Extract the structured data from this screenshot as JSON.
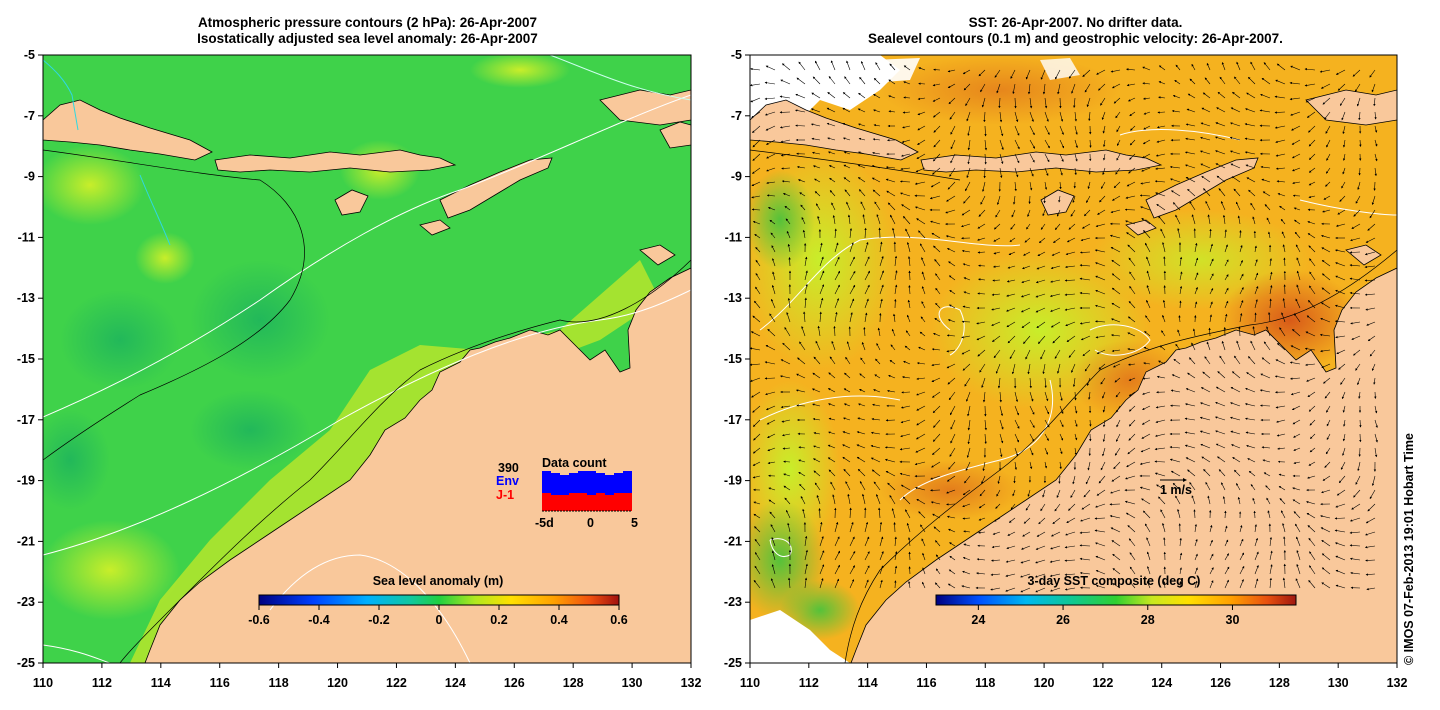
{
  "left_panel": {
    "title_line1": "Atmospheric pressure contours (2 hPa): 26-Apr-2007",
    "title_line2": "Isostatically adjusted sea level anomaly: 26-Apr-2007",
    "colorbar": {
      "label": "Sea level anomaly (m)",
      "ticks": [
        "-0.6",
        "-0.4",
        "-0.2",
        "0",
        "0.2",
        "0.4",
        "0.6"
      ],
      "range": [
        -0.6,
        0.6
      ]
    },
    "data_count": {
      "title": "Data count",
      "total": "390",
      "env_label": "Env",
      "j1_label": "J-1",
      "x_ticks": [
        "-5d",
        "0",
        "5"
      ],
      "env_color": "#0000ff",
      "j1_color": "#ff0000"
    }
  },
  "right_panel": {
    "title_line1": "SST: 26-Apr-2007. No drifter data.",
    "title_line2": "Sealevel contours (0.1 m) and geostrophic velocity: 26-Apr-2007.",
    "colorbar": {
      "label": "3-day SST composite (deg C)",
      "ticks": [
        "24",
        "26",
        "28",
        "30"
      ],
      "range": [
        23,
        31.5
      ]
    },
    "velocity_scale_label": "1 m/s"
  },
  "axes": {
    "lon_ticks": [
      "110",
      "112",
      "114",
      "116",
      "118",
      "120",
      "122",
      "124",
      "126",
      "128",
      "130",
      "132"
    ],
    "lat_ticks": [
      "-5",
      "-7",
      "-9",
      "-11",
      "-13",
      "-15",
      "-17",
      "-19",
      "-21",
      "-23",
      "-25"
    ],
    "lon_range": [
      110,
      132
    ],
    "lat_range": [
      -25,
      -5
    ]
  },
  "credit": "© IMOS 07-Feb-2013 19:01 Hobart Time",
  "colors": {
    "land": "#f9c89b",
    "sla_ocean": "#3fd24a",
    "sst_ocean": "#f5b21f"
  }
}
